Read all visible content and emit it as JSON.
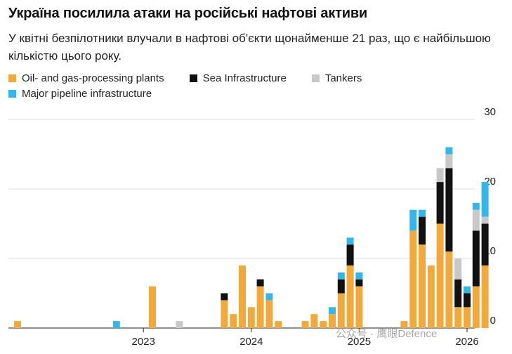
{
  "chart_data": {
    "type": "bar",
    "stacked": true,
    "title": "Україна посилила атаки на російські нафтові активи",
    "subtitle": "У квітні безпілотники влучали в нафтові об'єкти щонайменше 21 раз, що є найбільшою кількістю цього року.",
    "ylim": [
      0,
      30
    ],
    "y_ticks": [
      0,
      10,
      20,
      30
    ],
    "x_tick_labels": [
      {
        "label": "2023",
        "index": 14
      },
      {
        "label": "2024",
        "index": 26
      },
      {
        "label": "2025",
        "index": 38
      },
      {
        "label": "2026",
        "index": 50
      }
    ],
    "grid": true,
    "y_axis_side": "right",
    "legend_position": "top-left",
    "series": [
      {
        "name": "Oil- and gas-processing plants",
        "color": "#f2a93b",
        "values": [
          1,
          0,
          0,
          0,
          0,
          0,
          0,
          0,
          0,
          0,
          0,
          0,
          0,
          0,
          0,
          6,
          0,
          0,
          0,
          0,
          0,
          0,
          0,
          4,
          2,
          9,
          3,
          6,
          4,
          1,
          0,
          0,
          1,
          2,
          1,
          2,
          5,
          9,
          6,
          0,
          0,
          0,
          0,
          1,
          14,
          12,
          9,
          15,
          11,
          3,
          3,
          6,
          9
        ]
      },
      {
        "name": "Sea Infrastructure",
        "color": "#111111",
        "values": [
          0,
          0,
          0,
          0,
          0,
          0,
          0,
          0,
          0,
          0,
          0,
          0,
          0,
          0,
          0,
          0,
          0,
          0,
          0,
          0,
          0,
          0,
          0,
          1,
          0,
          0,
          0,
          1,
          0,
          0,
          0,
          0,
          0,
          0,
          0,
          0,
          2,
          3,
          1,
          0,
          0,
          0,
          0,
          0,
          0,
          4,
          0,
          6,
          12,
          4,
          2,
          8,
          6
        ]
      },
      {
        "name": "Tankers",
        "color": "#c8c8c8",
        "values": [
          0,
          0,
          0,
          0,
          0,
          0,
          0,
          0,
          0,
          0,
          0,
          0,
          0,
          0,
          0,
          0,
          0,
          0,
          1,
          0,
          0,
          0,
          0,
          0,
          0,
          0,
          0,
          0,
          0,
          0,
          0,
          0,
          0,
          0,
          0,
          0,
          0,
          0,
          0,
          0,
          0,
          0,
          0,
          0,
          0,
          0,
          0,
          2,
          2,
          3,
          0,
          3,
          1
        ]
      },
      {
        "name": "Major pipeline infrastructure",
        "color": "#35b6e8",
        "values": [
          0,
          0,
          0,
          0,
          0,
          0,
          0,
          0,
          0,
          0,
          0,
          1,
          0,
          0,
          0,
          0,
          0,
          0,
          0,
          0,
          0,
          0,
          0,
          0,
          0,
          0,
          0,
          0,
          1,
          0,
          0,
          0,
          0,
          0,
          0,
          1,
          1,
          1,
          1,
          0,
          0,
          0,
          0,
          0,
          3,
          1,
          0,
          0,
          1,
          0,
          1,
          1,
          5
        ]
      }
    ]
  },
  "watermark": "公众号 · 鹰眼Defence"
}
